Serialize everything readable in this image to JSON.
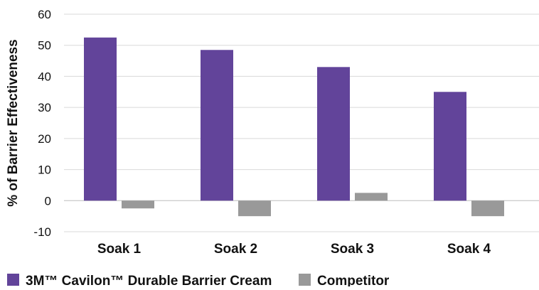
{
  "chart_data": {
    "type": "bar",
    "categories": [
      "Soak 1",
      "Soak 2",
      "Soak 3",
      "Soak 4"
    ],
    "series": [
      {
        "name": "3M™ Cavilon™ Durable Barrier Cream",
        "values": [
          52.5,
          48.5,
          43,
          35
        ],
        "color": "#62449a"
      },
      {
        "name": "Competitor",
        "values": [
          -2.5,
          -5,
          2.5,
          -5
        ],
        "color": "#999999"
      }
    ],
    "ylabel": "% of Barrier Effectiveness",
    "xlabel": "",
    "ylim": [
      -10,
      60
    ],
    "yticks": [
      -10,
      0,
      10,
      20,
      30,
      40,
      50,
      60
    ],
    "ytick_labels": [
      "-10",
      "0",
      "10",
      "20",
      "30",
      "40",
      "50",
      "60"
    ],
    "grid": true,
    "legend_position": "bottom-left"
  }
}
